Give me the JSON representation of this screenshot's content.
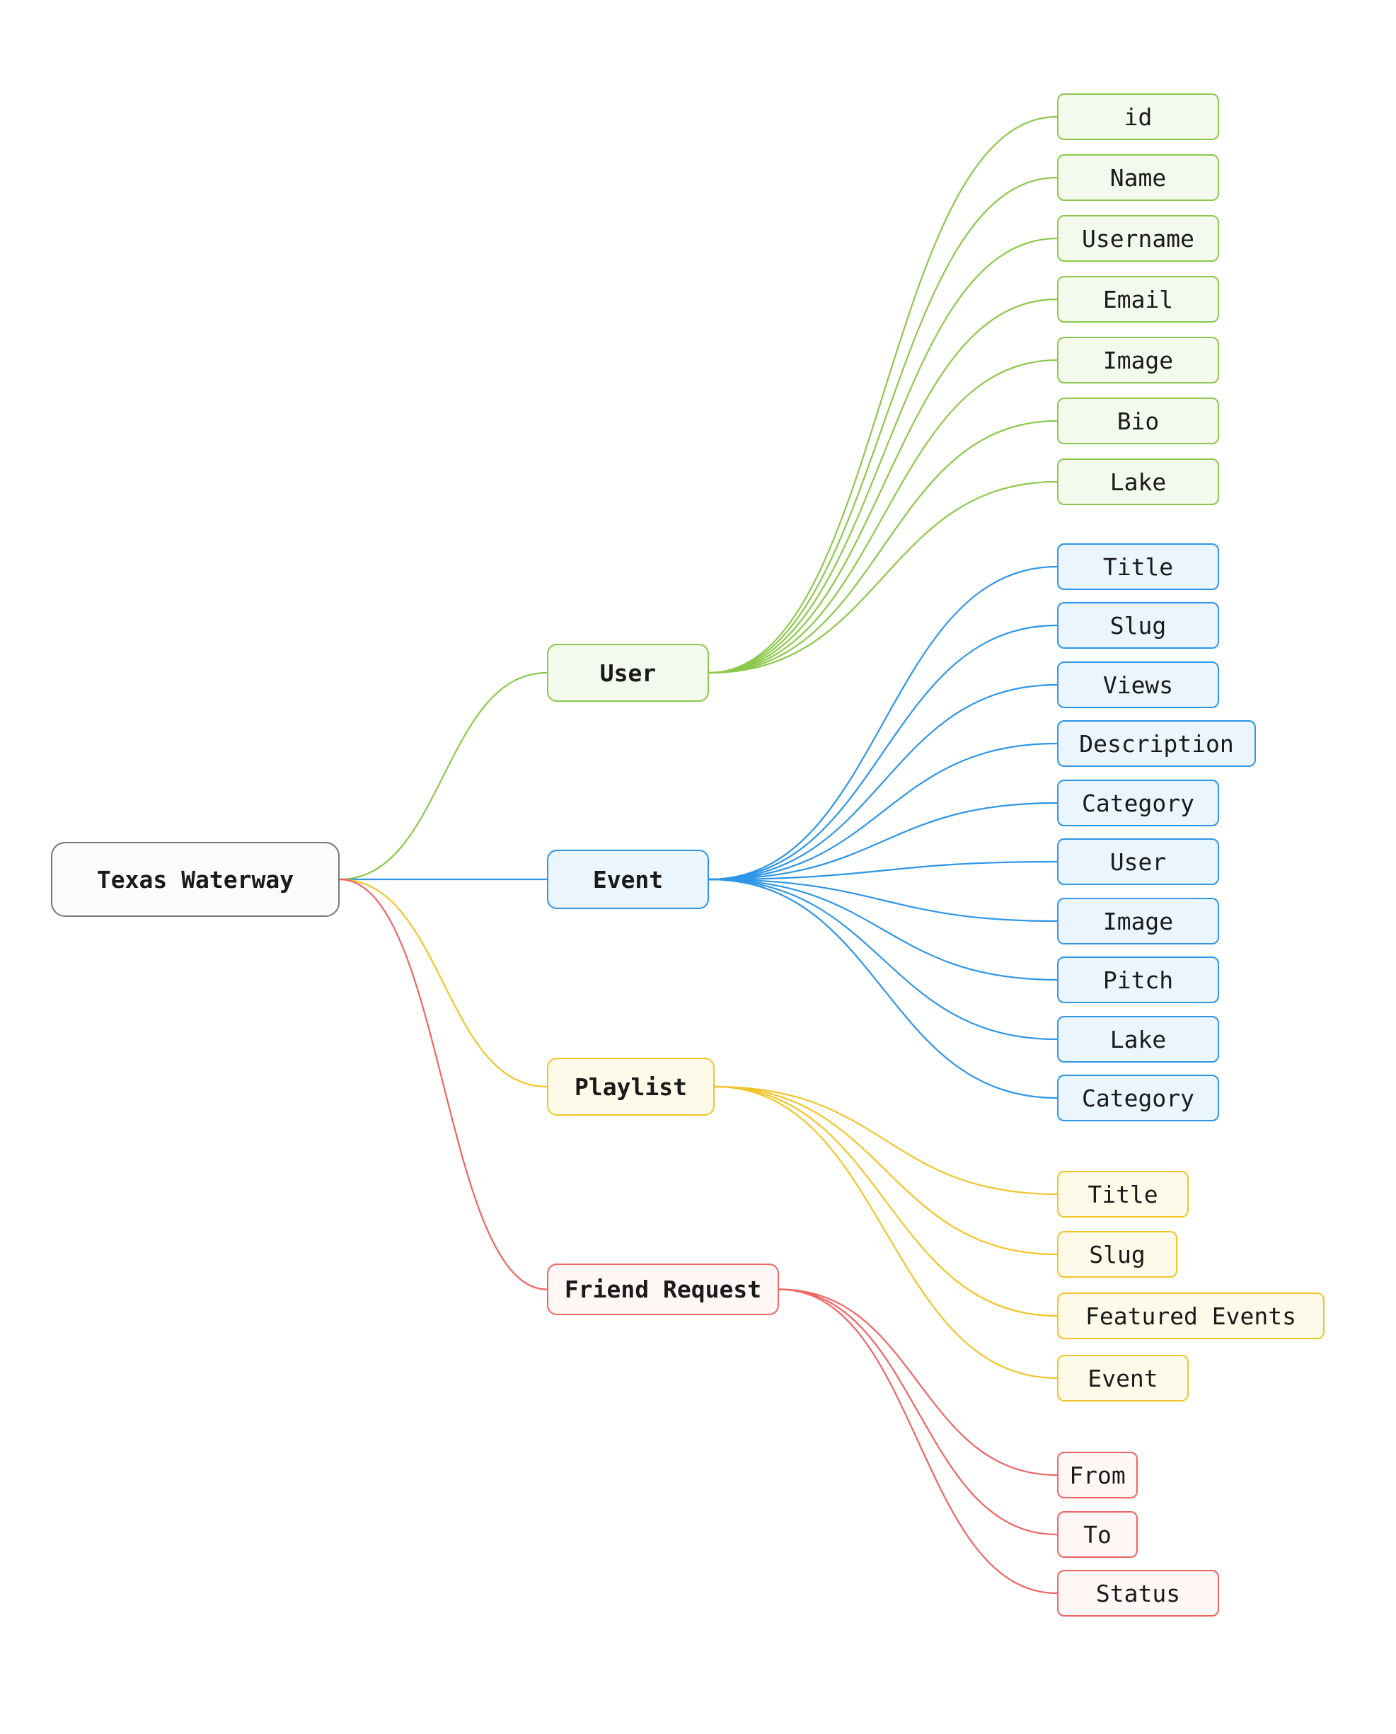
{
  "root": {
    "label": "Texas Waterway",
    "color": "#777777",
    "fill": "#fbfbfb"
  },
  "branches": [
    {
      "label": "User",
      "color": "#8cc84b",
      "fill": "#f4f9ee",
      "fields": [
        "id",
        "Name",
        "Username",
        "Email",
        "Image",
        "Bio",
        "Lake"
      ]
    },
    {
      "label": "Event",
      "color": "#2f95e6",
      "fill": "#ebf5fd",
      "fields": [
        "Title",
        "Slug",
        "Views",
        "Description",
        "Category",
        "User",
        "Image",
        "Pitch",
        "Lake",
        "Category"
      ]
    },
    {
      "label": "Playlist",
      "color": "#f2c42a",
      "fill": "#fefaea",
      "fields": [
        "Title",
        "Slug",
        "Featured Events",
        "Event"
      ]
    },
    {
      "label": "Friend Request",
      "color": "#f06464",
      "fill": "#fff6f6",
      "fields": [
        "From",
        "To",
        "Status"
      ]
    }
  ]
}
